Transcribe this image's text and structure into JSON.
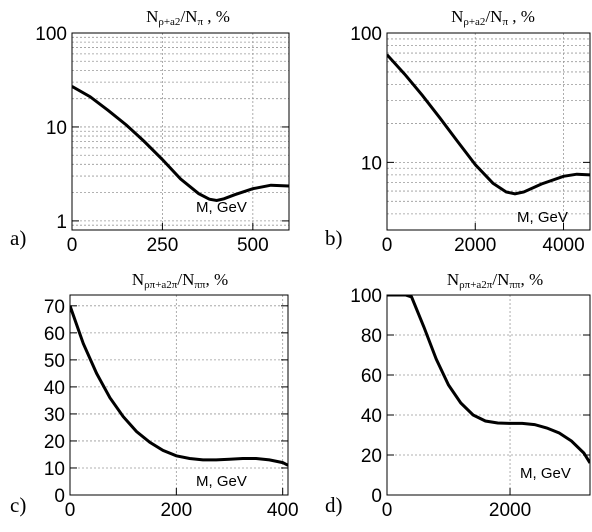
{
  "chart_data": [
    {
      "id": "a",
      "type": "line",
      "panel_label": "a)",
      "title": {
        "n1": "N",
        "s1": "ρ+a2",
        "n2": "/N",
        "s2": "π",
        "tail": " , %"
      },
      "annotation": "M, GeV",
      "xlim": [
        0,
        600
      ],
      "ylim": [
        0.8,
        100
      ],
      "yscale": "log",
      "xticks": [
        0,
        250,
        500
      ],
      "xtick_labels": [
        "0",
        "250",
        "500"
      ],
      "yticks": [
        1,
        10,
        100
      ],
      "ytick_labels": [
        "1",
        "10",
        "100"
      ],
      "grid": true,
      "series": [
        {
          "x": [
            0,
            50,
            100,
            150,
            200,
            250,
            300,
            350,
            380,
            400,
            420,
            450,
            500,
            550,
            600
          ],
          "y": [
            27,
            21,
            15,
            10.5,
            7,
            4.5,
            2.8,
            1.95,
            1.7,
            1.65,
            1.72,
            1.9,
            2.2,
            2.4,
            2.35
          ]
        }
      ]
    },
    {
      "id": "b",
      "type": "line",
      "panel_label": "b)",
      "title": {
        "n1": "N",
        "s1": "ρ+a2",
        "n2": "/N",
        "s2": "π",
        "tail": " , %"
      },
      "annotation": "M, GeV",
      "xlim": [
        0,
        4600
      ],
      "ylim": [
        3,
        100
      ],
      "yscale": "log",
      "xticks": [
        0,
        2000,
        4000
      ],
      "xtick_labels": [
        "0",
        "2000",
        "4000"
      ],
      "yticks": [
        10,
        100
      ],
      "ytick_labels": [
        "10",
        "100"
      ],
      "grid": true,
      "series": [
        {
          "x": [
            0,
            400,
            800,
            1200,
            1600,
            2000,
            2400,
            2700,
            2900,
            3100,
            3500,
            4000,
            4300,
            4600
          ],
          "y": [
            68,
            48,
            33,
            22,
            14.5,
            9.6,
            6.9,
            5.9,
            5.7,
            5.9,
            6.8,
            7.8,
            8.1,
            8.0
          ]
        }
      ]
    },
    {
      "id": "c",
      "type": "line",
      "panel_label": "c)",
      "title": {
        "n1": "N",
        "s1": "ρπ+a2π",
        "n2": "/N",
        "s2": "ππ",
        "tail": ", %"
      },
      "annotation": "M, GeV",
      "xlim": [
        0,
        410
      ],
      "ylim": [
        0,
        74
      ],
      "yscale": "linear",
      "xticks": [
        0,
        200,
        400
      ],
      "xtick_labels": [
        "0",
        "200",
        "400"
      ],
      "yticks": [
        0,
        10,
        20,
        30,
        40,
        50,
        60,
        70
      ],
      "ytick_labels": [
        "0",
        "10",
        "20",
        "30",
        "40",
        "50",
        "60",
        "70"
      ],
      "grid": true,
      "series": [
        {
          "x": [
            0,
            25,
            50,
            75,
            100,
            125,
            150,
            175,
            200,
            225,
            250,
            275,
            300,
            325,
            350,
            375,
            400,
            410
          ],
          "y": [
            70,
            56,
            45,
            36,
            29,
            23.5,
            19.5,
            16.5,
            14.5,
            13.5,
            13,
            13,
            13.2,
            13.5,
            13.5,
            13,
            12,
            11
          ]
        }
      ]
    },
    {
      "id": "d",
      "type": "line",
      "panel_label": "d)",
      "title": {
        "n1": "N",
        "s1": "ρπ+a2π",
        "n2": "/N",
        "s2": "ππ",
        "tail": ", %"
      },
      "annotation": "M, GeV",
      "xlim": [
        0,
        3300
      ],
      "ylim": [
        0,
        100
      ],
      "yscale": "linear",
      "xticks": [
        0,
        2000
      ],
      "xtick_labels": [
        "0",
        "2000"
      ],
      "yticks": [
        0,
        20,
        40,
        60,
        80,
        100
      ],
      "ytick_labels": [
        "0",
        "20",
        "40",
        "60",
        "80",
        "100"
      ],
      "grid": true,
      "series": [
        {
          "x": [
            0,
            300,
            400,
            600,
            800,
            1000,
            1200,
            1400,
            1600,
            1800,
            2000,
            2200,
            2400,
            2600,
            2800,
            3000,
            3200,
            3300
          ],
          "y": [
            100,
            100,
            99,
            84,
            68,
            55,
            46,
            40,
            37,
            36,
            35.8,
            35.8,
            35.2,
            33.5,
            31,
            27,
            21,
            16
          ]
        }
      ]
    }
  ]
}
